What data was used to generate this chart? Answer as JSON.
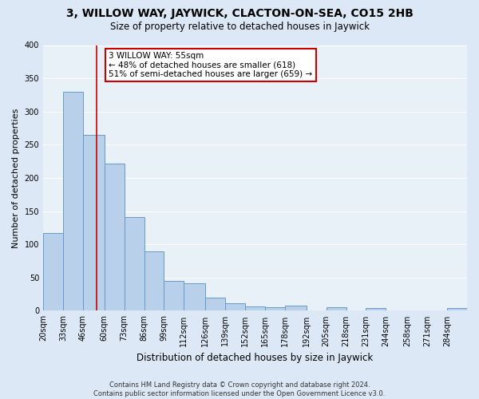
{
  "title": "3, WILLOW WAY, JAYWICK, CLACTON-ON-SEA, CO15 2HB",
  "subtitle": "Size of property relative to detached houses in Jaywick",
  "xlabel": "Distribution of detached houses by size in Jaywick",
  "ylabel": "Number of detached properties",
  "bin_labels": [
    "20sqm",
    "33sqm",
    "46sqm",
    "60sqm",
    "73sqm",
    "86sqm",
    "99sqm",
    "112sqm",
    "126sqm",
    "139sqm",
    "152sqm",
    "165sqm",
    "178sqm",
    "192sqm",
    "205sqm",
    "218sqm",
    "231sqm",
    "244sqm",
    "258sqm",
    "271sqm",
    "284sqm"
  ],
  "bin_edges": [
    20,
    33,
    46,
    60,
    73,
    86,
    99,
    112,
    126,
    139,
    152,
    165,
    178,
    192,
    205,
    218,
    231,
    244,
    258,
    271,
    284,
    297
  ],
  "bar_heights": [
    117,
    330,
    265,
    221,
    141,
    90,
    45,
    41,
    20,
    11,
    6,
    5,
    8,
    1,
    5,
    1,
    4,
    0,
    0,
    0,
    4
  ],
  "bar_color": "#b8d0ea",
  "bar_edge_color": "#6699cc",
  "vline_color": "#cc0000",
  "vline_x": 55,
  "annotation_title": "3 WILLOW WAY: 55sqm",
  "annotation_line1": "← 48% of detached houses are smaller (618)",
  "annotation_line2": "51% of semi-detached houses are larger (659) →",
  "annotation_box_color": "#cc0000",
  "ylim": [
    0,
    400
  ],
  "yticks": [
    0,
    50,
    100,
    150,
    200,
    250,
    300,
    350,
    400
  ],
  "footer_line1": "Contains HM Land Registry data © Crown copyright and database right 2024.",
  "footer_line2": "Contains public sector information licensed under the Open Government Licence v3.0.",
  "bg_color": "#dce8f5",
  "plot_bg_color": "#e8f0f8",
  "grid_color": "#ffffff",
  "title_fontsize": 10,
  "subtitle_fontsize": 8.5,
  "ylabel_fontsize": 8,
  "xlabel_fontsize": 8.5,
  "tick_fontsize": 7,
  "footer_fontsize": 6,
  "annot_fontsize": 7.5
}
